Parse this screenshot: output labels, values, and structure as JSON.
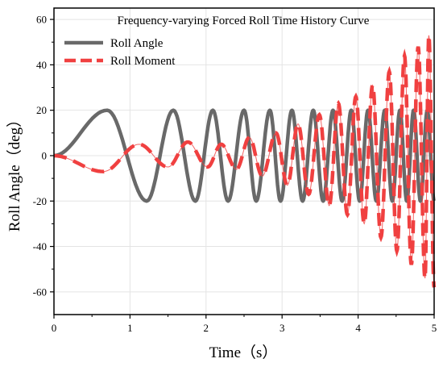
{
  "chart_data": {
    "type": "line",
    "title": "Frequency-varying Forced Roll Time History Curve",
    "xlabel": "Time（s）",
    "ylabel": "Roll Angle（deg）",
    "xlim": [
      0,
      5
    ],
    "ylim": [
      -70,
      65
    ],
    "xticks": [
      0,
      1,
      2,
      3,
      4,
      5
    ],
    "yticks": [
      -60,
      -40,
      -20,
      0,
      20,
      40,
      60
    ],
    "grid": true,
    "legend_position": "top-left",
    "series": [
      {
        "name": "Roll Angle",
        "color": "#696969",
        "style": "solid",
        "amplitude": 20,
        "extrema": [
          {
            "x": 0.0,
            "y": 0
          },
          {
            "x": 0.7,
            "y": 20
          },
          {
            "x": 1.22,
            "y": -20
          },
          {
            "x": 1.57,
            "y": 20
          },
          {
            "x": 1.86,
            "y": -20
          },
          {
            "x": 2.09,
            "y": 20
          },
          {
            "x": 2.29,
            "y": -20
          },
          {
            "x": 2.5,
            "y": 20
          },
          {
            "x": 2.66,
            "y": -20
          },
          {
            "x": 2.84,
            "y": 20
          },
          {
            "x": 2.98,
            "y": -20
          },
          {
            "x": 3.13,
            "y": 20
          },
          {
            "x": 3.27,
            "y": -20
          },
          {
            "x": 3.41,
            "y": 20
          },
          {
            "x": 3.54,
            "y": -20
          },
          {
            "x": 3.67,
            "y": 20
          },
          {
            "x": 3.79,
            "y": -20
          },
          {
            "x": 3.91,
            "y": 20
          },
          {
            "x": 4.02,
            "y": -20
          },
          {
            "x": 4.13,
            "y": 20
          },
          {
            "x": 4.24,
            "y": -20
          },
          {
            "x": 4.35,
            "y": 20
          },
          {
            "x": 4.45,
            "y": -20
          },
          {
            "x": 4.55,
            "y": 20
          },
          {
            "x": 4.64,
            "y": -20
          },
          {
            "x": 4.73,
            "y": 20
          },
          {
            "x": 4.82,
            "y": -20
          },
          {
            "x": 4.91,
            "y": 20
          },
          {
            "x": 5.0,
            "y": -20
          }
        ]
      },
      {
        "name": "Roll Moment",
        "color": "#f04040",
        "style": "dashed",
        "extrema": [
          {
            "x": 0.0,
            "y": 0
          },
          {
            "x": 0.65,
            "y": -7
          },
          {
            "x": 1.12,
            "y": 5
          },
          {
            "x": 1.5,
            "y": -5
          },
          {
            "x": 1.76,
            "y": 6
          },
          {
            "x": 2.02,
            "y": -5
          },
          {
            "x": 2.2,
            "y": 5
          },
          {
            "x": 2.4,
            "y": -6
          },
          {
            "x": 2.57,
            "y": 8
          },
          {
            "x": 2.74,
            "y": -9
          },
          {
            "x": 2.92,
            "y": 10
          },
          {
            "x": 3.07,
            "y": -13
          },
          {
            "x": 3.21,
            "y": 14
          },
          {
            "x": 3.35,
            "y": -17
          },
          {
            "x": 3.49,
            "y": 18
          },
          {
            "x": 3.62,
            "y": -22
          },
          {
            "x": 3.74,
            "y": 23
          },
          {
            "x": 3.86,
            "y": -26
          },
          {
            "x": 3.97,
            "y": 26
          },
          {
            "x": 4.08,
            "y": -30
          },
          {
            "x": 4.19,
            "y": 31
          },
          {
            "x": 4.3,
            "y": -36
          },
          {
            "x": 4.41,
            "y": 37
          },
          {
            "x": 4.51,
            "y": -42
          },
          {
            "x": 4.61,
            "y": 44
          },
          {
            "x": 4.7,
            "y": -48
          },
          {
            "x": 4.79,
            "y": 48
          },
          {
            "x": 4.88,
            "y": -54
          },
          {
            "x": 4.93,
            "y": 53
          },
          {
            "x": 5.0,
            "y": -58
          }
        ]
      }
    ]
  }
}
